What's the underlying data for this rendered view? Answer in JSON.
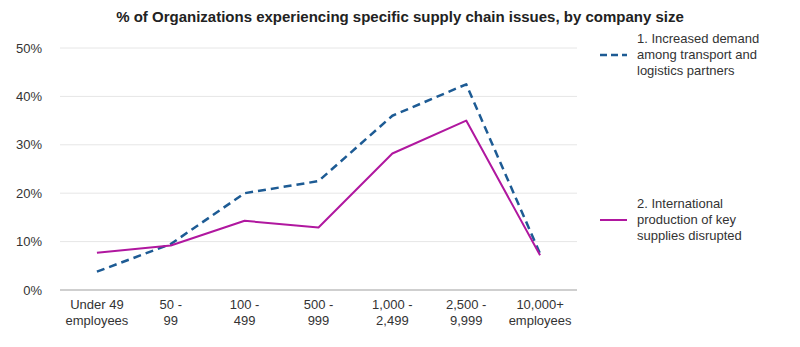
{
  "chart_data": {
    "type": "line",
    "title": "% of Organizations experiencing specific supply chain issues, by company size",
    "categories": [
      "Under 49 employees",
      "50 - 99",
      "100 - 499",
      "500 - 999",
      "1,000 - 2,499",
      "2,500 - 9,999",
      "10,000+ employees"
    ],
    "series": [
      {
        "name": "1. Increased demand among transport and logistics partners",
        "color": "#1d5b94",
        "line_style": "dashed",
        "values": [
          3.8,
          9.5,
          20,
          22.5,
          36,
          42.5,
          7.5
        ]
      },
      {
        "name": "2. International production of key supplies disrupted",
        "color": "#b0179f",
        "line_style": "solid",
        "values": [
          7.7,
          9.2,
          14.3,
          12.9,
          28.2,
          35,
          7.2
        ]
      }
    ],
    "ylim": [
      0,
      50
    ],
    "yticks": [
      {
        "value": 0,
        "label": "0%"
      },
      {
        "value": 10,
        "label": "10%"
      },
      {
        "value": 20,
        "label": "20%"
      },
      {
        "value": 30,
        "label": "30%"
      },
      {
        "value": 40,
        "label": "40%"
      },
      {
        "value": 50,
        "label": "50%"
      }
    ],
    "grid": true,
    "legend": "right"
  }
}
